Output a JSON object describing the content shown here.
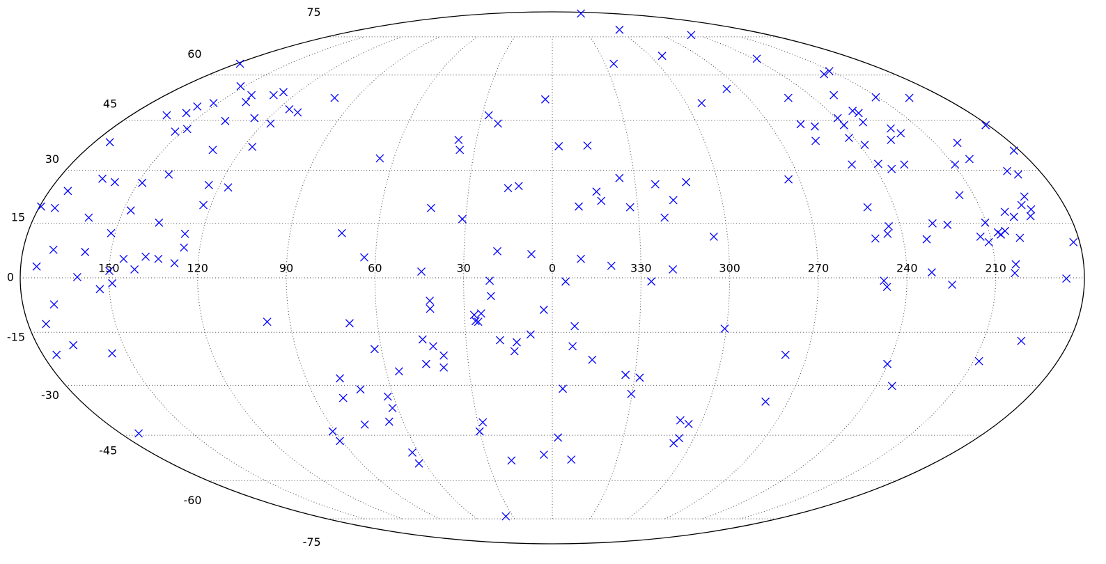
{
  "chart_data": {
    "type": "scatter",
    "projection": "mollweide",
    "marker": "x",
    "color": "blue",
    "xlim": [
      180,
      -180
    ],
    "ylim": [
      -90,
      90
    ],
    "xticks": [
      150,
      120,
      90,
      60,
      30,
      0,
      {
        "value": -30,
        "label": "330"
      },
      {
        "value": -60,
        "label": "300"
      },
      {
        "value": -90,
        "label": "270"
      },
      {
        "value": -120,
        "label": "240"
      },
      {
        "value": -150,
        "label": "210"
      }
    ],
    "yticks": [
      -75,
      -60,
      -45,
      -30,
      -15,
      0,
      15,
      30,
      45,
      60,
      75
    ],
    "grid": true,
    "x": [
      -86,
      -63,
      -115,
      -67.4,
      -122,
      -35,
      178,
      -142.9,
      -148.9,
      152,
      -83.8,
      140,
      138,
      129.7,
      127,
      100,
      3.2,
      -108.4,
      -149,
      -164,
      -131,
      -67,
      152,
      157,
      157.7,
      164.8,
      115,
      110,
      -130.5,
      -132,
      27.2,
      22.6,
      126,
      137,
      -120.7,
      -129.6,
      -120.5,
      117,
      -102.9,
      -108,
      -138.4,
      -140.4,
      149,
      152.7,
      -118,
      -103.9,
      -134,
      -122,
      174,
      116.6,
      131,
      37.1,
      35.7,
      -2.5,
      -13.7,
      -179,
      -159,
      -177.8,
      65.3,
      -157.7,
      -150.6,
      -131.6,
      -122,
      -112,
      -168,
      -171,
      -125.8,
      140.8,
      164,
      158.6,
      148.5,
      -24.5,
      -86,
      -37.2,
      -48.5,
      124,
      116.6,
      12.1,
      15.9,
      -15.8,
      -17.3,
      173.4,
      -144.9,
      -167.7,
      -42.8,
      179.5,
      174.4,
      147.4,
      122.7,
      42.5,
      -9.3,
      -27.3,
      -110.6,
      -165,
      -167.6,
      -158,
      -160.4,
      -166.3,
      161,
      136,
      -39,
      31.2,
      -131.4,
      -136.4,
      -149.7,
      -116,
      -115,
      -110.5,
      151.4,
      126,
      72.2,
      -155.6,
      -153,
      -153.8,
      -146.6,
      -149,
      -160,
      -128,
      -55.3,
      -177.9,
      169.7,
      158.8,
      125.4,
      18.7,
      7.1,
      63.8,
      -9.7,
      145.4,
      138,
      133.6,
      128,
      -157,
      -20,
      174.6,
      141.4,
      149.9,
      44.3,
      -40.8,
      -128.4,
      -156.5,
      -135.3,
      160.7,
      148.9,
      153.2,
      21.2,
      -4.5,
      -33.5,
      -112.2,
      -113.3,
      -173.9,
      20.8,
      41.6,
      41.6,
      2.9,
      169.4,
      173.9,
      97.8,
      26.7,
      24.3,
      26.3,
      25.4,
      69.6,
      -7.7,
      -59.4,
      7.5,
      12.4,
      18.2,
      13.3,
      45.1,
      41.7,
      38.4,
      45.1,
      39.0,
      62.4,
      -7.1,
      -14.2,
      167.5,
      175.2,
      155.3,
      -163.3,
      -82.4,
      -152,
      -119.8,
      55.4,
      -26.6,
      -31.9,
      77.6,
      71.5,
      -3.9,
      79.3,
      62.2,
      -29.7,
      -125.8,
      -81.5,
      62,
      76.1,
      65.6,
      -51.3,
      -55.2,
      28.0,
      30.1,
      91.0,
      172.5,
      -53.8,
      -52.4,
      91.0,
      -2.4,
      62.8,
      63,
      3.8,
      -8.8,
      19.0,
      35.5
    ],
    "y": [
      88,
      78.3,
      75.8,
      67.1,
      66.0,
      64.1,
      64.1,
      60.3,
      61.4,
      56.1,
      55.2,
      53.1,
      50.8,
      53.1,
      54.1,
      52.2,
      51.7,
      52.2,
      52.4,
      52.2,
      53.1,
      50.5,
      50.5,
      49.4,
      47.3,
      46.6,
      48.5,
      47.5,
      48.0,
      47.3,
      46.6,
      44.0,
      45.7,
      44.8,
      45.7,
      44.4,
      43.5,
      44.0,
      43.8,
      43.1,
      42.5,
      41.0,
      42.3,
      41.5,
      39.6,
      38.7,
      39.0,
      37.5,
      38.3,
      36.9,
      36.0,
      39.0,
      36.0,
      37.1,
      37.3,
      43.5,
      38.1,
      35.8,
      33.5,
      33.3,
      31.7,
      31.7,
      31.9,
      31.7,
      29.8,
      28.8,
      30.4,
      28.8,
      27.6,
      26.6,
      26.4,
      27.8,
      27.4,
      26.0,
      26.6,
      25.8,
      25.1,
      25.5,
      24.9,
      23.9,
      21.3,
      24.1,
      22.9,
      22.5,
      21.5,
      19.7,
      19.3,
      18.6,
      20.1,
      19.3,
      19.7,
      19.5,
      19.5,
      20.1,
      18.9,
      18.2,
      16.8,
      17.0,
      16.6,
      15.2,
      16.6,
      16.2,
      15.0,
      14.6,
      15.2,
      14.2,
      12.1,
      10.8,
      12.3,
      12.1,
      12.3,
      12.9,
      12.5,
      11.9,
      11.3,
      9.8,
      11.0,
      10.6,
      11.3,
      9.8,
      7.7,
      7.1,
      8.3,
      7.3,
      6.5,
      5.6,
      5.2,
      5.2,
      5.8,
      5.2,
      4.0,
      3.7,
      3.3,
      3.1,
      2.3,
      1.9,
      1.7,
      2.3,
      1.5,
      1.3,
      -1.9,
      0.2,
      -1.5,
      -3.1,
      -0.8,
      -1.0,
      -1.0,
      -0.8,
      -2.5,
      -0.2,
      -5.0,
      -6.3,
      -8.5,
      -8.8,
      -7.3,
      -12.7,
      -12.1,
      -10.2,
      -9.8,
      -11.9,
      -12.1,
      -12.5,
      -13.3,
      -14.0,
      -15.6,
      -17.8,
      -17.2,
      -20.3,
      -17.0,
      -18.9,
      -21.5,
      -23.9,
      -24.9,
      -19.7,
      -18.9,
      -22.7,
      -18.6,
      -21.3,
      -20.9,
      -17.4,
      -21.3,
      -23.1,
      -23.9,
      -26.0,
      -27.0,
      -27.8,
      -28.0,
      -31.2,
      -31.0,
      -33.7,
      -33.3,
      -32.5,
      -30.2,
      -34.8,
      -36.7,
      -41.7,
      -40.8,
      -40.4,
      -41.5,
      -41.0,
      -43.8,
      -43.8,
      -44.4,
      -45.9,
      -47.5,
      -46.8,
      -45.7,
      -50.5,
      -54.1,
      -51.2,
      -52.8,
      -53.1,
      -73.9
    ]
  }
}
